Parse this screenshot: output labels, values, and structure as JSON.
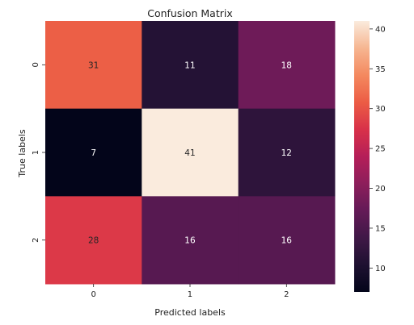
{
  "chart_data": {
    "type": "heatmap",
    "title": "Confusion Matrix",
    "xlabel": "Predicted labels",
    "ylabel": "True labels",
    "x_categories": [
      "0",
      "1",
      "2"
    ],
    "y_categories": [
      "0",
      "1",
      "2"
    ],
    "values": [
      [
        31,
        11,
        18
      ],
      [
        7,
        41,
        12
      ],
      [
        28,
        16,
        16
      ]
    ],
    "colorbar": {
      "range": [
        7,
        41
      ],
      "ticks": [
        "10",
        "15",
        "20",
        "25",
        "30",
        "35",
        "40"
      ]
    },
    "colormap": "rocket",
    "annotations": true
  }
}
